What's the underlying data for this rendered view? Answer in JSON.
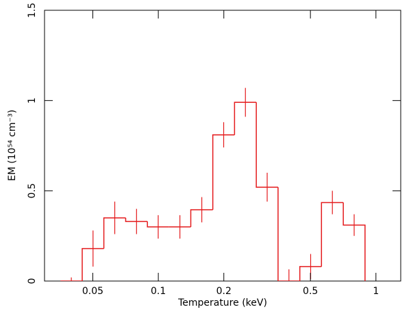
{
  "chart_data": {
    "type": "histogram",
    "xlabel": "Temperature (keV)",
    "ylabel": "EM (10⁵⁴ cm⁻³)",
    "xscale": "log",
    "color": "#e41a1c",
    "bins": [
      0.0355,
      0.0447,
      0.0562,
      0.0708,
      0.0891,
      0.112,
      0.141,
      0.178,
      0.224,
      0.282,
      0.355,
      0.447,
      0.562,
      0.708,
      0.891
    ],
    "values": [
      0,
      0.18,
      0.35,
      0.33,
      0.3,
      0.3,
      0.395,
      0.81,
      0.99,
      0.52,
      0,
      0.08,
      0.435,
      0.31
    ],
    "errors": [
      0.02,
      0.1,
      0.09,
      0.07,
      0.065,
      0.065,
      0.07,
      0.07,
      0.08,
      0.08,
      0.065,
      0.07,
      0.065,
      0.06
    ],
    "xlim": [
      0.03,
      1.3
    ],
    "ylim": [
      0,
      1.5
    ],
    "xticks": [
      0.05,
      0.1,
      0.2,
      0.5,
      1
    ],
    "yticks": [
      0,
      0.5,
      1,
      1.5
    ]
  }
}
